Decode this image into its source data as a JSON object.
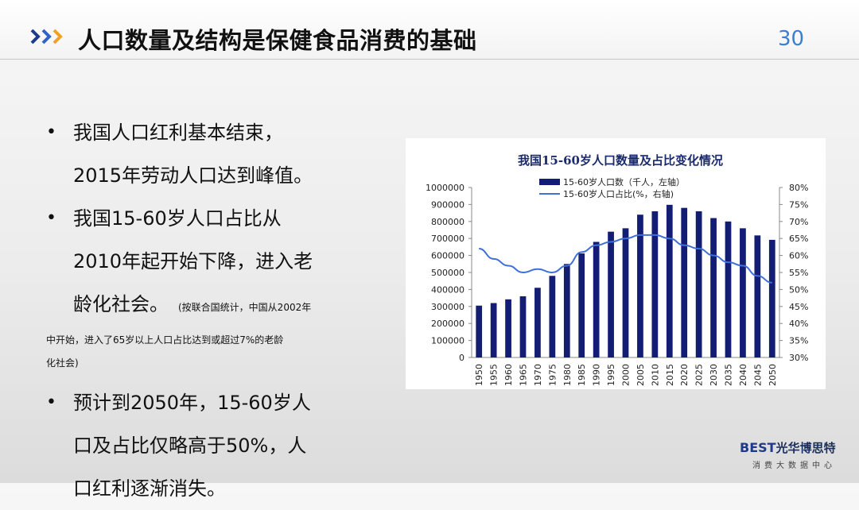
{
  "slide": {
    "title": "人口数量及结构是保健食品消费的基础",
    "page_number": "30"
  },
  "bullets": [
    {
      "lines": [
        "我国人口红利基本结束，",
        "2015年劳动人口达到峰值。"
      ]
    },
    {
      "lines": [
        "我国15-60岁人口占比从",
        "2010年起开始下降，进入老",
        "龄化社会。"
      ],
      "note_inline": "(按联合国统计，中国从2002年",
      "note_lines": [
        "中开始，进入了65岁以上人口占比达到或超过7%的老龄",
        "化社会)"
      ]
    },
    {
      "lines": [
        "预计到2050年，15-60岁人",
        "口及占比仅略高于50%，人",
        "口红利逐渐消失。"
      ]
    }
  ],
  "brand": {
    "logo_text": "BEST",
    "cn_name": "光华博思特",
    "subtitle": "消费大数据中心"
  },
  "colors": {
    "bar": "#131d73",
    "line": "#3f6fd8",
    "title": "#1a2a6e",
    "accent": "#3a7fd1"
  },
  "chart_data": {
    "type": "bar",
    "title": "我国15-60岁人口数量及占比变化情况",
    "categories": [
      "1950",
      "1955",
      "1960",
      "1965",
      "1970",
      "1975",
      "1980",
      "1985",
      "1990",
      "1995",
      "2000",
      "2005",
      "2010",
      "2015",
      "2020",
      "2025",
      "2030",
      "2035",
      "2040",
      "2045",
      "2050"
    ],
    "series": [
      {
        "name": "15-60岁人口数（千人，左轴）",
        "type": "bar",
        "axis": "left",
        "values": [
          305000,
          320000,
          342000,
          360000,
          410000,
          480000,
          550000,
          612000,
          680000,
          740000,
          760000,
          840000,
          860000,
          898000,
          880000,
          860000,
          820000,
          800000,
          760000,
          718000,
          692000
        ]
      },
      {
        "name": "15-60岁人口占比(%，右轴)",
        "type": "line",
        "axis": "right",
        "values": [
          62,
          59,
          57,
          55,
          56,
          55,
          57,
          61,
          63,
          64,
          65,
          66,
          66,
          65,
          63,
          62,
          60,
          58,
          57,
          54,
          52
        ]
      }
    ],
    "ylim_left": [
      0,
      1000000
    ],
    "yticks_left": [
      "1000000",
      "900000",
      "800000",
      "700000",
      "600000",
      "500000",
      "400000",
      "300000",
      "200000",
      "100000",
      "0"
    ],
    "ylim_right": [
      30,
      80
    ],
    "yticks_right": [
      "80%",
      "75%",
      "70%",
      "65%",
      "60%",
      "55%",
      "50%",
      "45%",
      "40%",
      "35%",
      "30%"
    ],
    "legend_position": "top-center",
    "grid": false
  }
}
